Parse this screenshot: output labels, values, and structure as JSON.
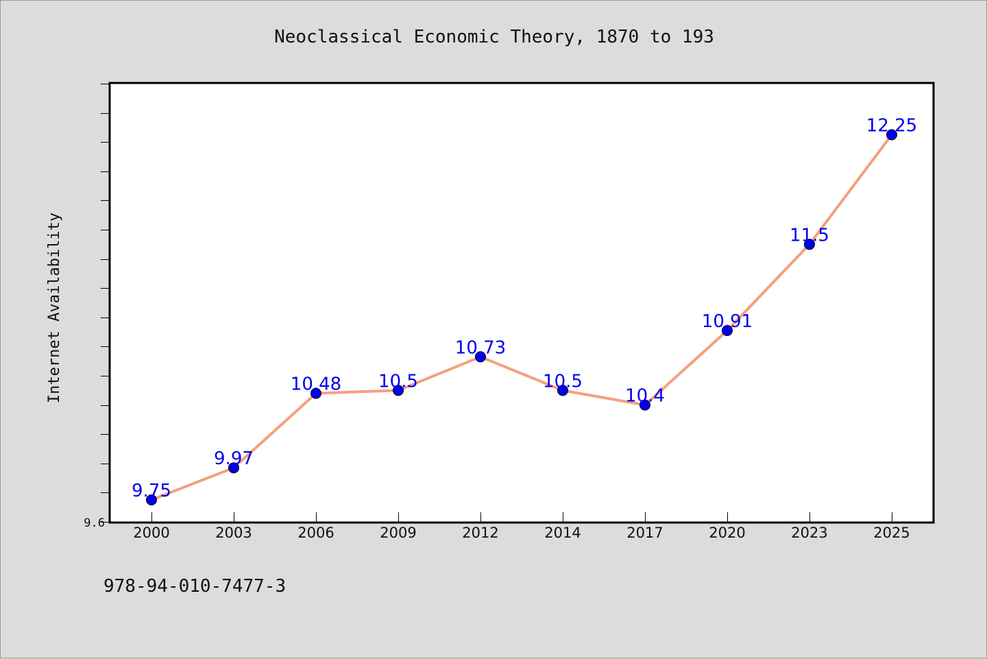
{
  "chart_data": {
    "type": "line",
    "title": "Neoclassical Economic Theory, 1870 to 193",
    "ylabel": "Internet Availability",
    "xlabel": "",
    "categories": [
      "2000",
      "2003",
      "2006",
      "2009",
      "2012",
      "2014",
      "2017",
      "2020",
      "2023",
      "2025"
    ],
    "series": [
      {
        "values": [
          9.75,
          9.97,
          10.48,
          10.5,
          10.73,
          10.5,
          10.4,
          10.91,
          11.5,
          12.25
        ],
        "data_labels": [
          "9.75",
          "9.97",
          "10.48",
          "10.5",
          "10.73",
          "10.5",
          "10.4",
          "10.91",
          "11.5",
          "12.25"
        ]
      }
    ],
    "y_tick_label": "9.6",
    "ylim": [
      9.6,
      12.6
    ],
    "y_minor_step": 0.2,
    "grid": false,
    "line_color": "#f4a07e",
    "marker_color": "#0000ee",
    "label_color": "#0000ee"
  },
  "footer": {
    "isbn": "978-94-010-7477-3"
  }
}
